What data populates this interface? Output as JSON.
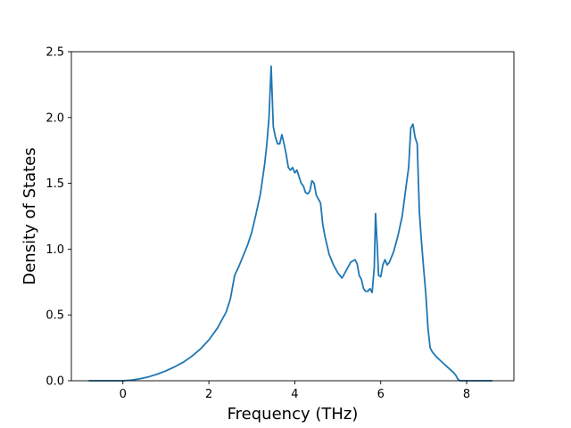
{
  "chart_data": {
    "type": "line",
    "title": "",
    "xlabel": "Frequency (THz)",
    "ylabel": "Density of States",
    "xlim": [
      -1.2,
      9.1
    ],
    "ylim": [
      0,
      2.5
    ],
    "xticks": [
      0,
      2,
      4,
      6,
      8
    ],
    "xtick_labels": [
      "0",
      "2",
      "4",
      "6",
      "8"
    ],
    "yticks": [
      0,
      0.5,
      1.0,
      1.5,
      2.0,
      2.5
    ],
    "ytick_labels": [
      "0.0",
      "0.5",
      "1.0",
      "1.5",
      "2.0",
      "2.5"
    ],
    "grid": false,
    "legend": "none",
    "line_color": "#1f77b4",
    "series": [
      {
        "x": [
          -0.8,
          -0.6,
          -0.4,
          -0.2,
          0.0,
          0.2,
          0.4,
          0.6,
          0.8,
          1.0,
          1.2,
          1.4,
          1.6,
          1.8,
          2.0,
          2.2,
          2.4,
          2.5,
          2.6,
          2.7,
          2.8,
          2.9,
          3.0,
          3.1,
          3.2,
          3.3,
          3.35,
          3.4,
          3.45,
          3.5,
          3.55,
          3.6,
          3.65,
          3.7,
          3.75,
          3.8,
          3.85,
          3.9,
          3.95,
          4.0,
          4.05,
          4.1,
          4.15,
          4.2,
          4.25,
          4.3,
          4.35,
          4.4,
          4.45,
          4.5,
          4.55,
          4.6,
          4.65,
          4.7,
          4.75,
          4.8,
          4.9,
          5.0,
          5.1,
          5.2,
          5.3,
          5.4,
          5.45,
          5.5,
          5.55,
          5.6,
          5.65,
          5.7,
          5.75,
          5.8,
          5.85,
          5.88,
          5.92,
          5.95,
          6.0,
          6.05,
          6.1,
          6.15,
          6.2,
          6.3,
          6.4,
          6.5,
          6.6,
          6.65,
          6.7,
          6.75,
          6.8,
          6.85,
          6.9,
          6.95,
          7.0,
          7.05,
          7.1,
          7.15,
          7.2,
          7.3,
          7.4,
          7.5,
          7.6,
          7.7,
          7.75,
          7.8,
          7.85,
          8.0,
          8.3,
          8.6
        ],
        "y": [
          0.0,
          0.0,
          0.0,
          0.0,
          0.0,
          0.005,
          0.015,
          0.03,
          0.05,
          0.075,
          0.105,
          0.14,
          0.185,
          0.24,
          0.31,
          0.4,
          0.52,
          0.62,
          0.8,
          0.87,
          0.95,
          1.03,
          1.13,
          1.27,
          1.42,
          1.65,
          1.8,
          2.0,
          2.39,
          1.93,
          1.85,
          1.8,
          1.8,
          1.87,
          1.8,
          1.72,
          1.62,
          1.6,
          1.62,
          1.58,
          1.6,
          1.55,
          1.5,
          1.48,
          1.43,
          1.42,
          1.44,
          1.52,
          1.5,
          1.41,
          1.38,
          1.35,
          1.19,
          1.1,
          1.03,
          0.96,
          0.88,
          0.82,
          0.78,
          0.84,
          0.9,
          0.92,
          0.89,
          0.8,
          0.77,
          0.7,
          0.68,
          0.68,
          0.7,
          0.67,
          0.86,
          1.27,
          1.02,
          0.8,
          0.79,
          0.88,
          0.92,
          0.88,
          0.9,
          0.98,
          1.1,
          1.25,
          1.5,
          1.62,
          1.92,
          1.95,
          1.85,
          1.8,
          1.28,
          1.05,
          0.85,
          0.66,
          0.4,
          0.25,
          0.22,
          0.18,
          0.15,
          0.12,
          0.09,
          0.06,
          0.04,
          0.01,
          0.0,
          0.0,
          0.0,
          0.0
        ]
      }
    ]
  }
}
